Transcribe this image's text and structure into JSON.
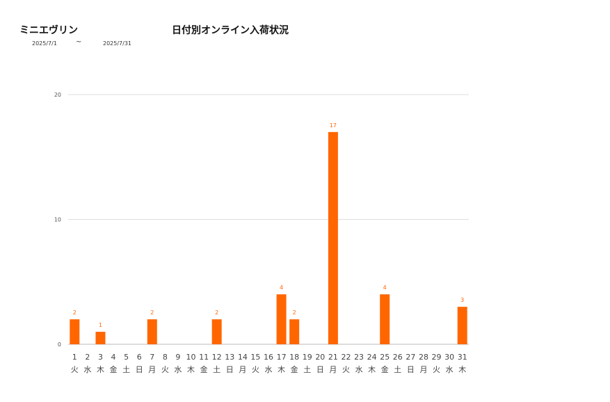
{
  "header": {
    "product_name": "ミニエヴリン",
    "title": "日付別オンライン入荷状況",
    "date_from": "2025/7/1",
    "date_separator": "~",
    "date_to": "2025/7/31"
  },
  "colors": {
    "bar": "#ff6600",
    "label": "#ff6600",
    "grid": "#dddddd",
    "axis_text": "#444444"
  },
  "chart_data": {
    "type": "bar",
    "title": "日付別オンライン入荷状況",
    "xlabel": "",
    "ylabel": "",
    "ylim": [
      0,
      20
    ],
    "yticks": [
      0,
      10,
      20
    ],
    "grid": true,
    "categories": [
      "1",
      "2",
      "3",
      "4",
      "5",
      "6",
      "7",
      "8",
      "9",
      "10",
      "11",
      "12",
      "13",
      "14",
      "15",
      "16",
      "17",
      "18",
      "19",
      "20",
      "21",
      "22",
      "23",
      "24",
      "25",
      "26",
      "27",
      "28",
      "29",
      "30",
      "31"
    ],
    "weekdays": [
      "火",
      "水",
      "木",
      "金",
      "土",
      "日",
      "月",
      "火",
      "水",
      "木",
      "金",
      "土",
      "日",
      "月",
      "火",
      "水",
      "木",
      "金",
      "土",
      "日",
      "月",
      "火",
      "水",
      "木",
      "金",
      "土",
      "日",
      "月",
      "火",
      "水",
      "木"
    ],
    "values": [
      2,
      0,
      1,
      0,
      0,
      0,
      2,
      0,
      0,
      0,
      0,
      2,
      0,
      0,
      0,
      0,
      4,
      2,
      0,
      0,
      17,
      0,
      0,
      0,
      4,
      0,
      0,
      0,
      0,
      0,
      3
    ]
  }
}
